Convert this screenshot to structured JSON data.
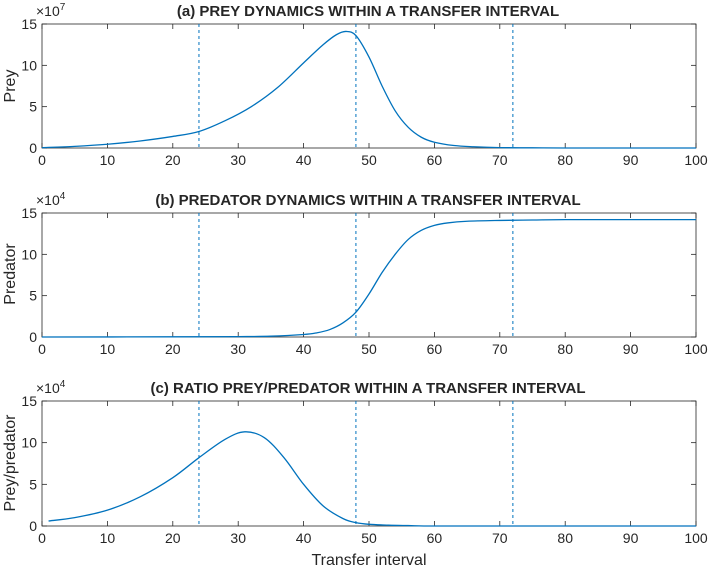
{
  "figure": {
    "xlabel": "Transfer interval"
  },
  "colors": {
    "line": "#0072BD",
    "axes": "#262626",
    "background": "#ffffff"
  },
  "chart_data": [
    {
      "type": "line",
      "title": "(a) PREY DYNAMICS WITHIN A TRANSFER INTERVAL",
      "ylabel": "Prey",
      "exponent": {
        "base": "×10",
        "power": "7"
      },
      "xlim": [
        0,
        100
      ],
      "ylim": [
        0,
        15
      ],
      "xticks": [
        "0",
        "10",
        "20",
        "30",
        "40",
        "50",
        "60",
        "70",
        "80",
        "90",
        "100"
      ],
      "yticks": [
        "0",
        "5",
        "10",
        "15"
      ],
      "xtick_values": [
        0,
        10,
        20,
        30,
        40,
        50,
        60,
        70,
        80,
        90,
        100
      ],
      "ytick_values": [
        0,
        5,
        10,
        15
      ],
      "vlines": [
        24,
        48,
        72
      ],
      "grid": false,
      "series": [
        {
          "x": [
            0,
            5,
            10,
            15,
            20,
            24,
            28,
            32,
            36,
            40,
            43,
            45,
            46.5,
            48,
            50,
            52,
            54,
            56,
            58,
            60,
            63,
            66,
            70,
            75,
            80,
            90,
            100
          ],
          "y": [
            0.05,
            0.2,
            0.45,
            0.85,
            1.4,
            2.0,
            3.3,
            5.0,
            7.3,
            10.3,
            12.5,
            13.7,
            14.1,
            13.6,
            11.0,
            7.5,
            4.5,
            2.5,
            1.3,
            0.7,
            0.3,
            0.15,
            0.05,
            0.02,
            0.0,
            0.0,
            0.0
          ]
        }
      ]
    },
    {
      "type": "line",
      "title": "(b) PREDATOR DYNAMICS WITHIN A TRANSFER INTERVAL",
      "ylabel": "Predator",
      "exponent": {
        "base": "×10",
        "power": "4"
      },
      "xlim": [
        0,
        100
      ],
      "ylim": [
        0,
        15
      ],
      "xticks": [
        "0",
        "10",
        "20",
        "30",
        "40",
        "50",
        "60",
        "70",
        "80",
        "90",
        "100"
      ],
      "yticks": [
        "0",
        "5",
        "10",
        "15"
      ],
      "xtick_values": [
        0,
        10,
        20,
        30,
        40,
        50,
        60,
        70,
        80,
        90,
        100
      ],
      "ytick_values": [
        0,
        5,
        10,
        15
      ],
      "vlines": [
        24,
        48,
        72
      ],
      "grid": false,
      "series": [
        {
          "x": [
            0,
            20,
            30,
            35,
            40,
            42,
            44,
            46,
            48,
            50,
            52,
            54,
            56,
            58,
            60,
            62,
            65,
            70,
            75,
            80,
            90,
            100
          ],
          "y": [
            0.0,
            0.02,
            0.05,
            0.1,
            0.3,
            0.5,
            0.9,
            1.7,
            3.0,
            5.2,
            7.8,
            10.0,
            11.8,
            12.9,
            13.5,
            13.8,
            14.0,
            14.1,
            14.15,
            14.2,
            14.2,
            14.2
          ]
        }
      ]
    },
    {
      "type": "line",
      "title": "(c) RATIO PREY/PREDATOR WITHIN A TRANSFER INTERVAL",
      "ylabel": "Prey/predator",
      "exponent": {
        "base": "×10",
        "power": "4"
      },
      "xlim": [
        0,
        100
      ],
      "ylim": [
        0,
        15
      ],
      "xticks": [
        "0",
        "10",
        "20",
        "30",
        "40",
        "50",
        "60",
        "70",
        "80",
        "90",
        "100"
      ],
      "yticks": [
        "0",
        "5",
        "10",
        "15"
      ],
      "xtick_values": [
        0,
        10,
        20,
        30,
        40,
        50,
        60,
        70,
        80,
        90,
        100
      ],
      "ytick_values": [
        0,
        5,
        10,
        15
      ],
      "vlines": [
        24,
        48,
        72
      ],
      "grid": false,
      "series": [
        {
          "x": [
            1,
            5,
            10,
            15,
            20,
            24,
            28,
            31,
            34,
            37,
            40,
            43,
            46,
            48,
            50,
            53,
            56,
            60,
            70,
            80,
            90,
            100
          ],
          "y": [
            0.6,
            1.0,
            1.9,
            3.5,
            5.8,
            8.2,
            10.4,
            11.3,
            10.6,
            8.2,
            5.0,
            2.4,
            0.9,
            0.4,
            0.2,
            0.1,
            0.05,
            0.0,
            0.0,
            0.0,
            0.0,
            0.0
          ]
        }
      ]
    }
  ]
}
